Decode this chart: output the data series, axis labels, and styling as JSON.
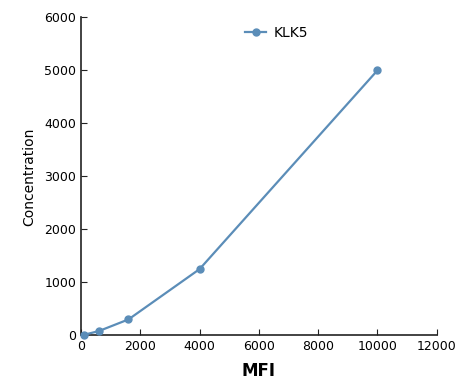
{
  "x": [
    100,
    600,
    1600,
    4000,
    10000
  ],
  "y": [
    10,
    80,
    300,
    1250,
    5000
  ],
  "line_color": "#5B8DB8",
  "marker_color": "#5B8DB8",
  "marker_style": "o",
  "marker_size": 5,
  "line_width": 1.6,
  "label": "KLK5",
  "xlabel": "MFI",
  "ylabel": "Concentration",
  "xlim": [
    0,
    12000
  ],
  "ylim": [
    0,
    6000
  ],
  "xticks": [
    0,
    2000,
    4000,
    6000,
    8000,
    10000,
    12000
  ],
  "yticks": [
    0,
    1000,
    2000,
    3000,
    4000,
    5000,
    6000
  ],
  "xlabel_fontsize": 12,
  "ylabel_fontsize": 10,
  "tick_fontsize": 9,
  "legend_fontsize": 10,
  "spine_color": "#222222",
  "background_color": "#ffffff"
}
